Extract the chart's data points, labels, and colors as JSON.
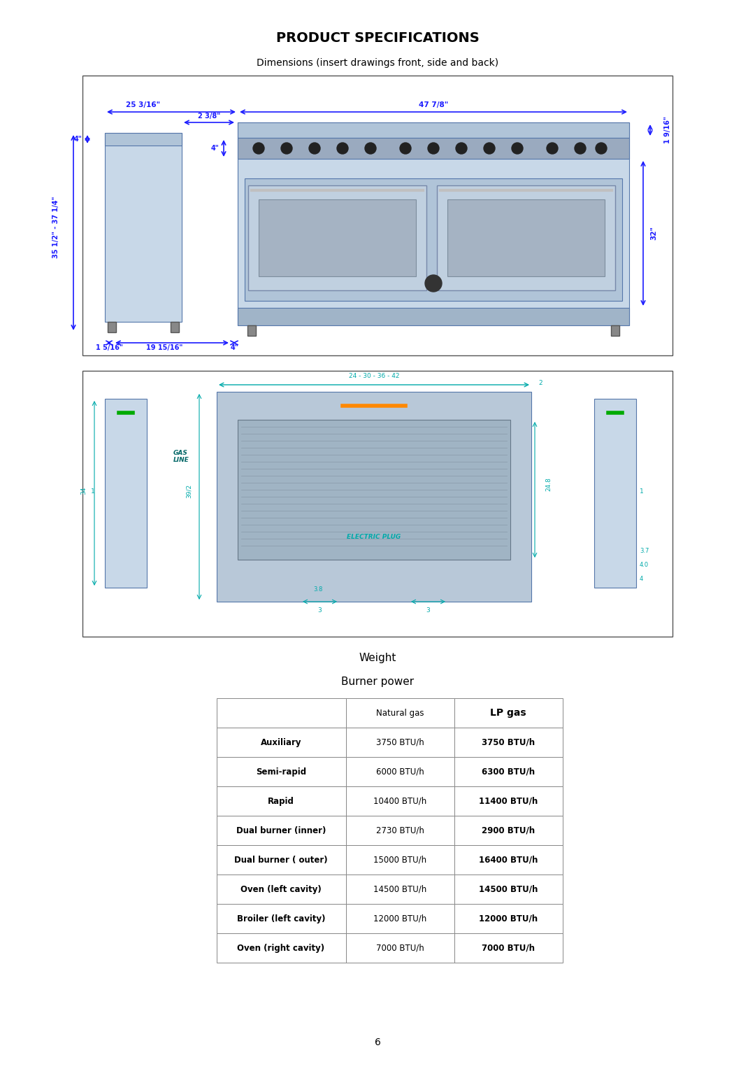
{
  "title": "PRODUCT SPECIFICATIONS",
  "subtitle": "Dimensions (insert drawings front, side and back)",
  "weight_label": "Weight",
  "burner_power_label": "Burner power",
  "table_headers": [
    "",
    "Natural gas",
    "LP gas"
  ],
  "table_rows": [
    [
      "Auxiliary",
      "3750 BTU/h",
      "3750 BTU/h"
    ],
    [
      "Semi-rapid",
      "6000 BTU/h",
      "6300 BTU/h"
    ],
    [
      "Rapid",
      "10400 BTU/h",
      "11400 BTU/h"
    ],
    [
      "Dual burner (inner)",
      "2730 BTU/h",
      "2900 BTU/h"
    ],
    [
      "Dual burner ( outer)",
      "15000 BTU/h",
      "16400 BTU/h"
    ],
    [
      "Oven (left cavity)",
      "14500 BTU/h",
      "14500 BTU/h"
    ],
    [
      "Broiler (left cavity)",
      "12000 BTU/h",
      "12000 BTU/h"
    ],
    [
      "Oven (right cavity)",
      "7000 BTU/h",
      "7000 BTU/h"
    ]
  ],
  "lp_gas_bold": true,
  "page_number": "6",
  "bg_color": "#ffffff",
  "text_color": "#000000",
  "dim_color": "#1a1aff",
  "table_line_color": "#888888",
  "title_fontsize": 14,
  "subtitle_fontsize": 10,
  "table_fontsize": 8.5
}
